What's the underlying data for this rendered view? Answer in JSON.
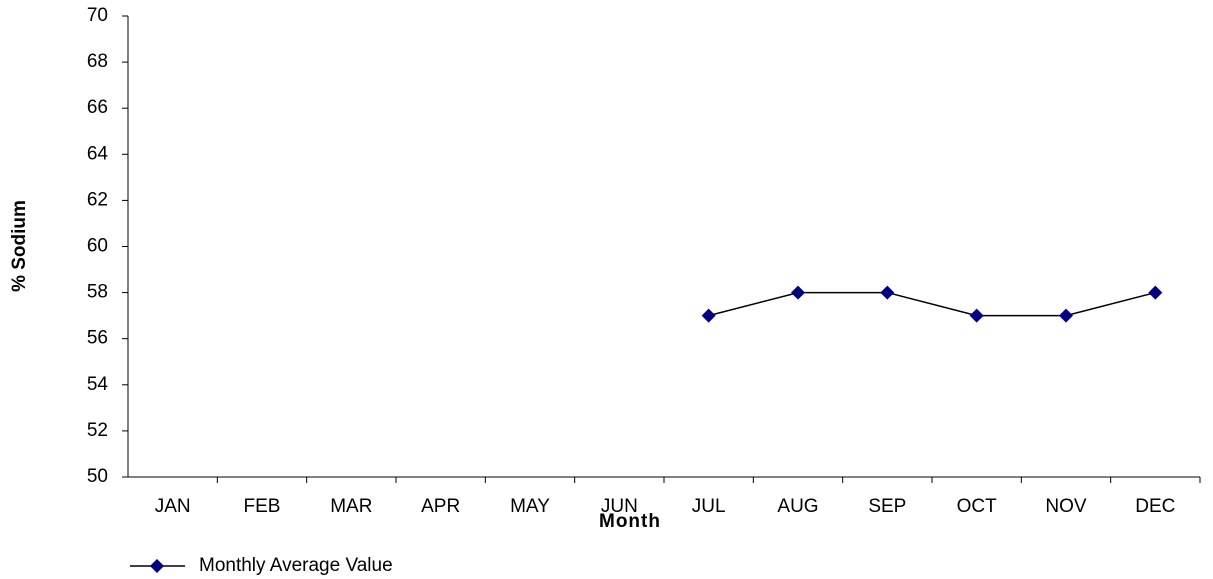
{
  "chart_data": {
    "type": "line",
    "x_label": "Month",
    "y_label": "% Sodium",
    "categories": [
      "JAN",
      "FEB",
      "MAR",
      "APR",
      "MAY",
      "JUN",
      "JUL",
      "AUG",
      "SEP",
      "OCT",
      "NOV",
      "DEC"
    ],
    "series": [
      {
        "name": "Monthly Average Value",
        "color": "#000080",
        "line_color": "#000000",
        "values": [
          null,
          null,
          null,
          null,
          null,
          null,
          57,
          58,
          58,
          57,
          57,
          58
        ]
      }
    ],
    "ylim": [
      50,
      70
    ],
    "yticks": [
      50,
      52,
      54,
      56,
      58,
      60,
      62,
      64,
      66,
      68,
      70
    ],
    "grid": false,
    "legend": "bottom-left"
  }
}
